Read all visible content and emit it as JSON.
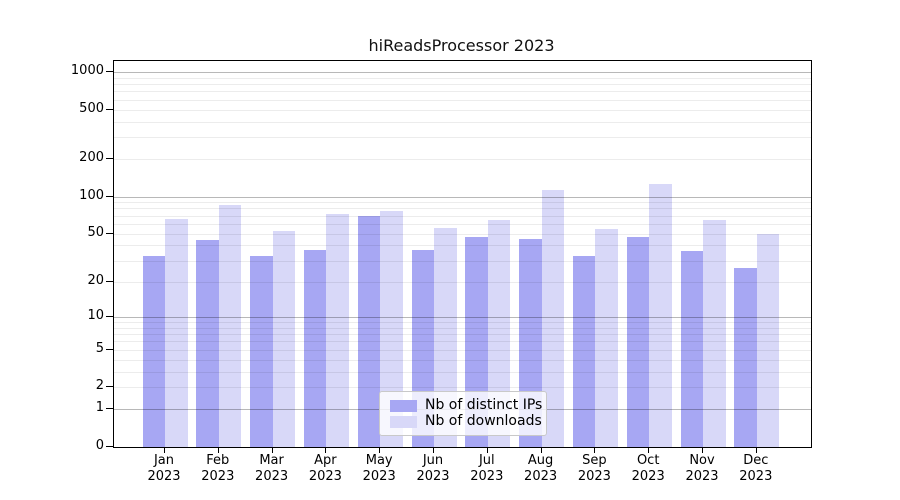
{
  "title": "hiReadsProcessor 2023",
  "colors": {
    "distinct_ips_bar": "#a7a7f3",
    "downloads_bar": "#d8d8f8",
    "grid_major": "rgba(0,0,0,0.28)",
    "grid_minor": "rgba(0,0,0,0.075)",
    "axis": "#000000",
    "background": "#ffffff"
  },
  "legend": {
    "position": "lower center"
  },
  "chart_data": {
    "type": "bar",
    "title": "hiReadsProcessor 2023",
    "categories": [
      "Jan 2023",
      "Feb 2023",
      "Mar 2023",
      "Apr 2023",
      "May 2023",
      "Jun 2023",
      "Jul 2023",
      "Aug 2023",
      "Sep 2023",
      "Oct 2023",
      "Nov 2023",
      "Dec 2023"
    ],
    "series": [
      {
        "name": "Nb of distinct IPs",
        "color": "#a7a7f3",
        "values": [
          33,
          44,
          33,
          37,
          70,
          37,
          47,
          45,
          33,
          47,
          36,
          26
        ]
      },
      {
        "name": "Nb of downloads",
        "color": "#d8d8f8",
        "values": [
          66,
          85,
          53,
          72,
          76,
          56,
          65,
          112,
          55,
          126,
          65,
          50
        ]
      }
    ],
    "xlabel": "",
    "ylabel": "",
    "yscale": "log1p",
    "yticks": [
      0,
      1,
      2,
      5,
      10,
      20,
      50,
      100,
      200,
      500,
      1000
    ],
    "grid_major_at": [
      1,
      10,
      100,
      1000
    ],
    "grid_minor": "log decades 2-9 per decade",
    "ylim": [
      0,
      1220
    ],
    "grid": true,
    "legend_position": "lower center"
  }
}
